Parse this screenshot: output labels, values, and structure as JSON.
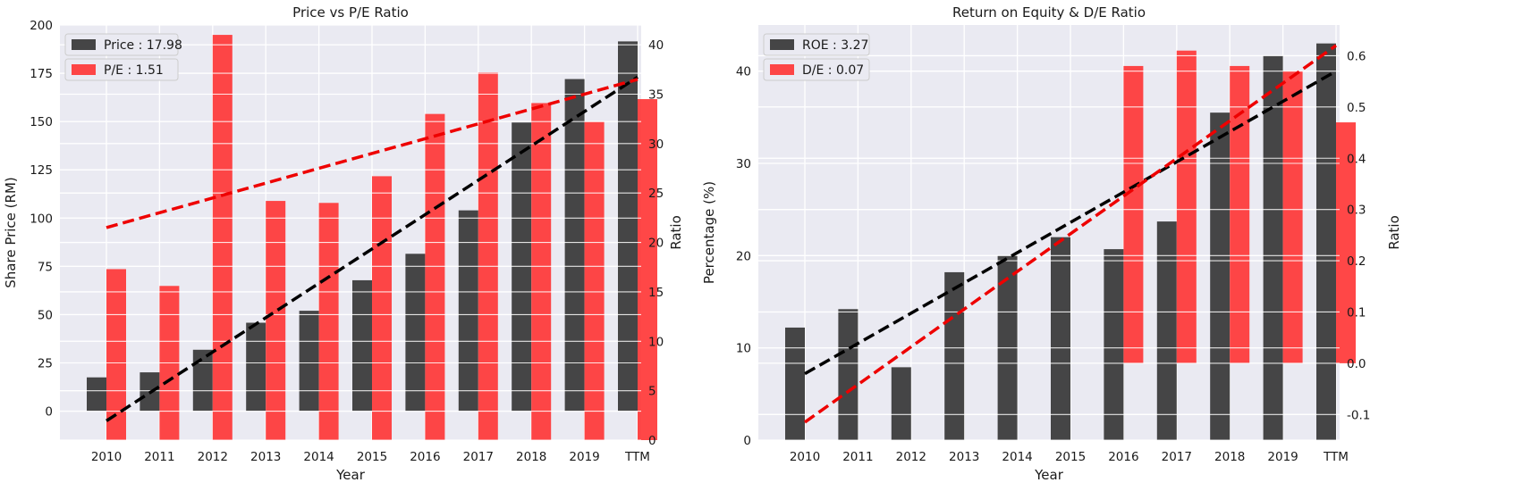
{
  "chart_data": [
    {
      "type": "bar",
      "title": "Price vs P/E Ratio",
      "xlabel": "Year",
      "ylabel": "Share Price (RM)",
      "y2label": "Ratio",
      "categories": [
        "2010",
        "2011",
        "2012",
        "2013",
        "2014",
        "2015",
        "2016",
        "2017",
        "2018",
        "2019",
        "TTM"
      ],
      "ylim": [
        -15,
        200
      ],
      "y2lim": [
        0,
        42
      ],
      "yticks": [
        0,
        25,
        50,
        75,
        100,
        125,
        150,
        175,
        200
      ],
      "y2ticks": [
        0,
        5,
        10,
        15,
        20,
        25,
        30,
        35,
        40
      ],
      "grid": true,
      "legend_position": "top-left",
      "series": [
        {
          "name": "Price : 17.98",
          "axis": "left",
          "color": "#333333",
          "values": [
            17.5,
            20.1,
            31.8,
            45.8,
            52.0,
            67.8,
            81.5,
            104.0,
            149.5,
            172.0,
            191.5
          ]
        },
        {
          "name": "P/E : 1.51",
          "axis": "right",
          "color": "#ff3333",
          "values": [
            17.3,
            15.6,
            41.0,
            24.2,
            24.0,
            26.7,
            33.0,
            37.2,
            34.1,
            32.2,
            34.5
          ]
        }
      ],
      "trendlines": [
        {
          "series": "Price",
          "axis": "left",
          "color": "#000000",
          "from": [
            -5,
            0
          ],
          "to": [
            173,
            10
          ]
        },
        {
          "series": "P/E",
          "axis": "right",
          "color": "#ee0000",
          "from": [
            21.5,
            0
          ],
          "to": [
            36.5,
            10
          ]
        }
      ]
    },
    {
      "type": "bar",
      "title": "Return on Equity & D/E Ratio",
      "xlabel": "Year",
      "ylabel": "Percentage (%)",
      "y2label": "Ratio",
      "categories": [
        "2010",
        "2011",
        "2012",
        "2013",
        "2014",
        "2015",
        "2016",
        "2017",
        "2018",
        "2019",
        "TTM"
      ],
      "ylim": [
        0,
        45
      ],
      "y2lim": [
        -0.15,
        0.66
      ],
      "yticks": [
        0,
        10,
        20,
        30,
        40
      ],
      "y2ticks": [
        -0.1,
        0.0,
        0.1,
        0.2,
        0.3,
        0.4,
        0.5,
        0.6
      ],
      "grid": true,
      "legend_position": "top-left",
      "series": [
        {
          "name": "ROE : 3.27",
          "axis": "left",
          "color": "#333333",
          "values": [
            12.2,
            14.2,
            7.9,
            18.2,
            20.0,
            22.0,
            20.7,
            23.7,
            35.5,
            41.7,
            43.0
          ]
        },
        {
          "name": "D/E : 07",
          "axis": "right",
          "color": "#ff3333",
          "values": [
            0.0,
            0.0,
            0.0,
            0.0,
            0.0,
            0.0,
            0.58,
            0.61,
            0.58,
            0.57,
            0.47
          ]
        }
      ],
      "trendlines": [
        {
          "series": "ROE",
          "axis": "left",
          "color": "#000000",
          "from": [
            7.2,
            0
          ],
          "to": [
            40,
            10
          ]
        },
        {
          "series": "D/E",
          "axis": "right",
          "color": "#ee0000",
          "from": [
            -0.115,
            0
          ],
          "to": [
            0.62,
            10
          ]
        }
      ]
    }
  ]
}
